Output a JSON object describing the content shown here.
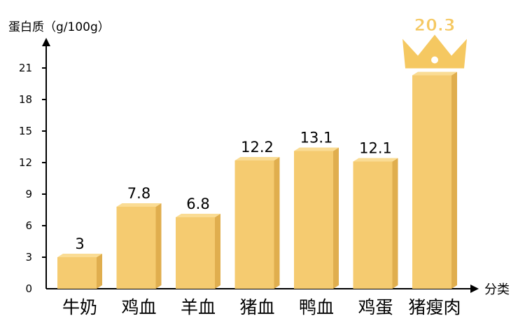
{
  "chart_data": {
    "type": "bar",
    "ylabel": "蛋白质（g/100g）",
    "xlabel": "分类",
    "categories": [
      "牛奶",
      "鸡血",
      "羊血",
      "猪血",
      "鸭血",
      "鸡蛋",
      "猪瘦肉"
    ],
    "values": [
      3,
      7.8,
      6.8,
      12.2,
      13.1,
      12.1,
      20.3
    ],
    "value_labels": [
      "3",
      "7.8",
      "6.8",
      "12.2",
      "13.1",
      "12.1",
      "20.3"
    ],
    "yticks": [
      0,
      3,
      6,
      9,
      12,
      15,
      18,
      21
    ],
    "ylim": [
      0,
      24
    ],
    "grid": false,
    "legend": "none",
    "highlight_index": 6,
    "highlight_marker": "crown-icon",
    "colors": {
      "bar_front": "#F5CB70",
      "bar_side": "#E0AE4E",
      "bar_top": "#FADC94",
      "crown": "#F5C861",
      "crown_dot": "#FFFFFF",
      "axis": "#000000",
      "highlight_label_fill": "#F5C861",
      "highlight_label_stroke": "#FFFFFF"
    }
  }
}
